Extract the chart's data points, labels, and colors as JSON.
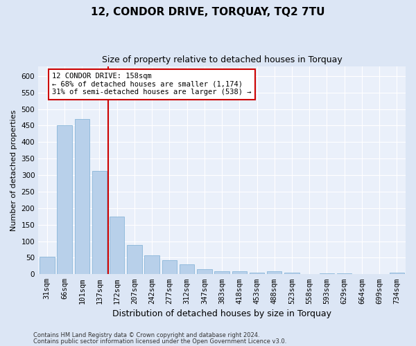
{
  "title": "12, CONDOR DRIVE, TORQUAY, TQ2 7TU",
  "subtitle": "Size of property relative to detached houses in Torquay",
  "xlabel": "Distribution of detached houses by size in Torquay",
  "ylabel": "Number of detached properties",
  "categories": [
    "31sqm",
    "66sqm",
    "101sqm",
    "137sqm",
    "172sqm",
    "207sqm",
    "242sqm",
    "277sqm",
    "312sqm",
    "347sqm",
    "383sqm",
    "418sqm",
    "453sqm",
    "488sqm",
    "523sqm",
    "558sqm",
    "593sqm",
    "629sqm",
    "664sqm",
    "699sqm",
    "734sqm"
  ],
  "values": [
    54,
    450,
    470,
    312,
    175,
    88,
    58,
    42,
    31,
    15,
    8,
    8,
    4,
    8,
    5,
    0,
    3,
    2,
    0,
    0,
    5
  ],
  "bar_color": "#b8d0ea",
  "bar_edge_color": "#7aadd4",
  "vline_x": 3.5,
  "vline_color": "#cc0000",
  "annotation_text": "12 CONDOR DRIVE: 158sqm\n← 68% of detached houses are smaller (1,174)\n31% of semi-detached houses are larger (538) →",
  "annotation_box_color": "#ffffff",
  "annotation_box_edge": "#cc0000",
  "ylim": [
    0,
    630
  ],
  "yticks": [
    0,
    50,
    100,
    150,
    200,
    250,
    300,
    350,
    400,
    450,
    500,
    550,
    600
  ],
  "footer_line1": "Contains HM Land Registry data © Crown copyright and database right 2024.",
  "footer_line2": "Contains public sector information licensed under the Open Government Licence v3.0.",
  "bg_color": "#dce6f5",
  "plot_bg_color": "#eaf0fa",
  "title_fontsize": 11,
  "subtitle_fontsize": 9,
  "xlabel_fontsize": 9,
  "ylabel_fontsize": 8,
  "tick_fontsize": 7.5,
  "footer_fontsize": 6,
  "ann_fontsize": 7.5
}
